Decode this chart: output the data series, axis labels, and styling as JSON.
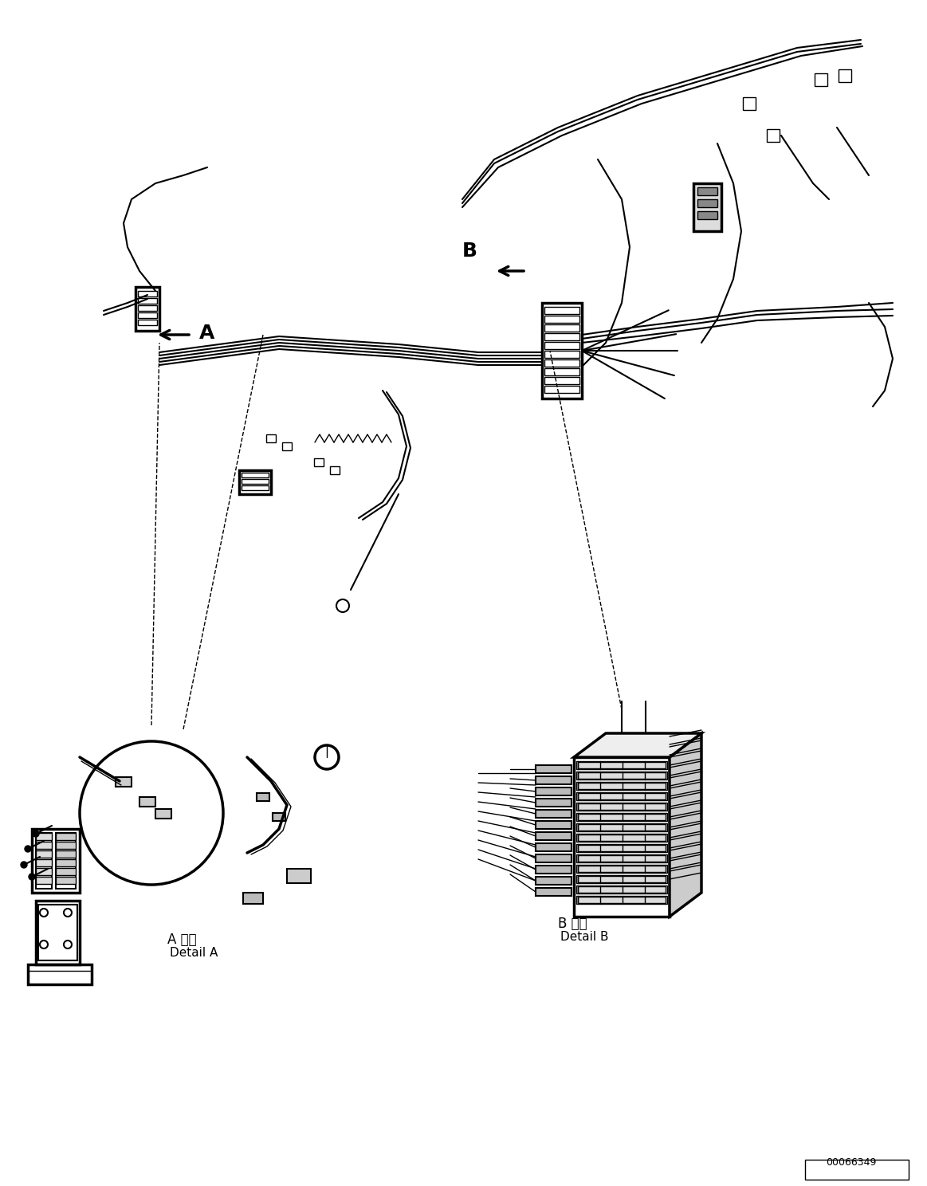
{
  "background_color": "#ffffff",
  "line_color": "#000000",
  "fig_width": 11.63,
  "fig_height": 14.88,
  "dpi": 100,
  "part_number": "00066349",
  "label_A": "A",
  "label_B": "B",
  "detail_A_japanese": "A 詳細",
  "detail_A_english": "Detail A",
  "detail_B_japanese": "B 詳細",
  "detail_B_english": "Detail B"
}
